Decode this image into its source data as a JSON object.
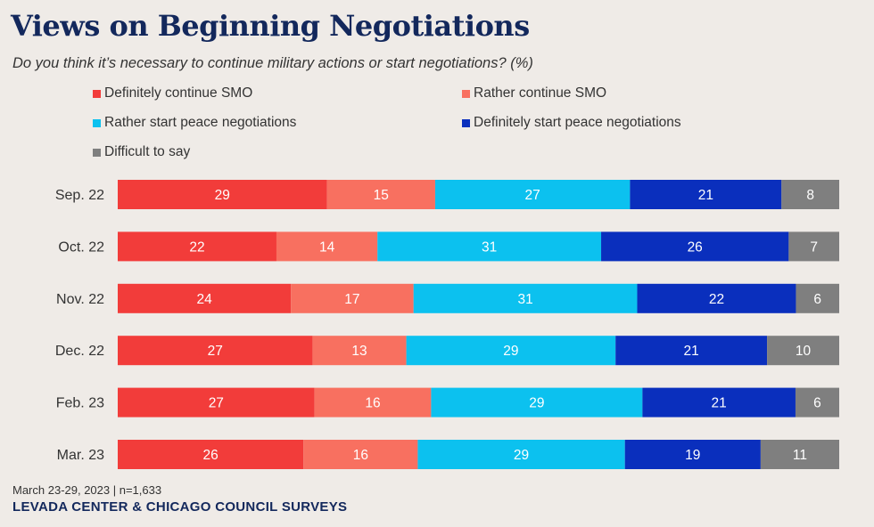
{
  "chart_data": {
    "type": "stacked-bar-horizontal",
    "title": "Views on Beginning Negotiations",
    "subtitle": "Do you think it’s necessary to continue military actions or start negotiations? (%)",
    "categories": [
      "Sep. 22",
      "Oct. 22",
      "Nov. 22",
      "Dec. 22",
      "Feb. 23",
      "Mar. 23"
    ],
    "series": [
      {
        "name": "Definitely continue SMO",
        "color": "#f23c3a",
        "values": [
          29,
          22,
          24,
          27,
          27,
          26
        ]
      },
      {
        "name": "Rather continue SMO",
        "color": "#f87060",
        "values": [
          15,
          14,
          17,
          13,
          16,
          16
        ]
      },
      {
        "name": "Rather start peace negotiations",
        "color": "#0cc1ef",
        "values": [
          27,
          31,
          31,
          29,
          29,
          29
        ]
      },
      {
        "name": "Definitely start peace negotiations",
        "color": "#0a2fbd",
        "values": [
          21,
          26,
          22,
          21,
          21,
          19
        ]
      },
      {
        "name": "Difficult to say",
        "color": "#7f7f7f",
        "values": [
          8,
          7,
          6,
          10,
          6,
          11
        ]
      }
    ],
    "xlim": [
      0,
      100
    ],
    "legend_position": "top"
  },
  "footer": {
    "source": "March 23-29, 2023 | n=1,633",
    "credit": "LEVADA CENTER & CHICAGO COUNCIL SURVEYS"
  }
}
